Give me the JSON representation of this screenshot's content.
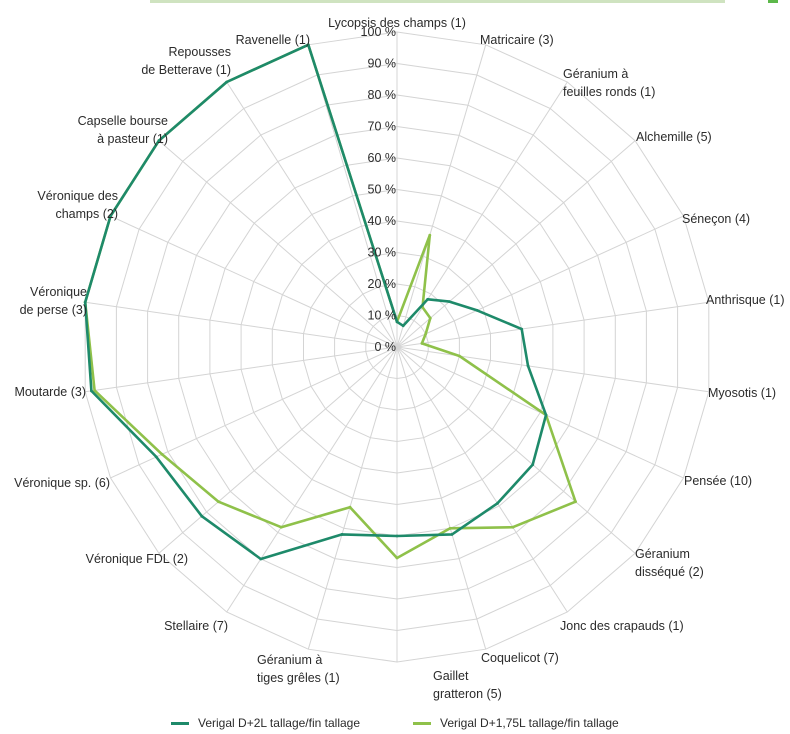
{
  "colors": {
    "series_dark": "#1e8a6a",
    "series_light": "#8fc14a",
    "grid": "#d4d4d4",
    "accent_green": "#5cb84a"
  },
  "chart_data": {
    "type": "radar",
    "title": "",
    "value_ticks": [
      "0 %",
      "10 %",
      "20 %",
      "30 %",
      "40 %",
      "50 %",
      "60 %",
      "70 %",
      "80 %",
      "90 %",
      "100 %"
    ],
    "range": [
      0,
      100
    ],
    "categories": [
      "Lycopsis des champs (1)",
      "Matricaire (3)",
      "Géranium à feuilles ronds (1)",
      "Alchemille (5)",
      "Séneçon (4)",
      "Anthrisque (1)",
      "Myosotis (1)",
      "Pensée (10)",
      "Géranium disséqué (2)",
      "Jonc des crapauds (1)",
      "Coquelicot (7)",
      "Gaillet gratteron (5)",
      "Géranium à tiges grêles (1)",
      "Stellaire (7)",
      "Véronique FDL (2)",
      "Véronique sp. (6)",
      "Moutarde (3)",
      "Véronique de perse (3)",
      "Véronique des champs (2)",
      "Capselle bourse à pasteur (1)",
      "Repousses de Betterave (1)",
      "Ravenelle (1)"
    ],
    "series": [
      {
        "name": "Verigal D+2L tallage/fin tallage",
        "color": "#1e8a6a",
        "values": [
          8,
          7,
          18,
          22,
          28,
          40,
          42,
          52,
          57,
          59,
          62,
          60,
          62,
          80,
          82,
          84,
          98,
          100,
          100,
          100,
          100,
          100
        ]
      },
      {
        "name": "Verigal D+1,75L tallage/fin tallage",
        "color": "#8fc14a",
        "values": [
          8,
          37,
          15,
          14,
          10,
          8,
          20,
          52,
          75,
          68,
          60,
          67,
          53,
          68,
          75,
          82,
          97,
          100,
          100,
          100,
          100,
          100
        ]
      }
    ]
  }
}
